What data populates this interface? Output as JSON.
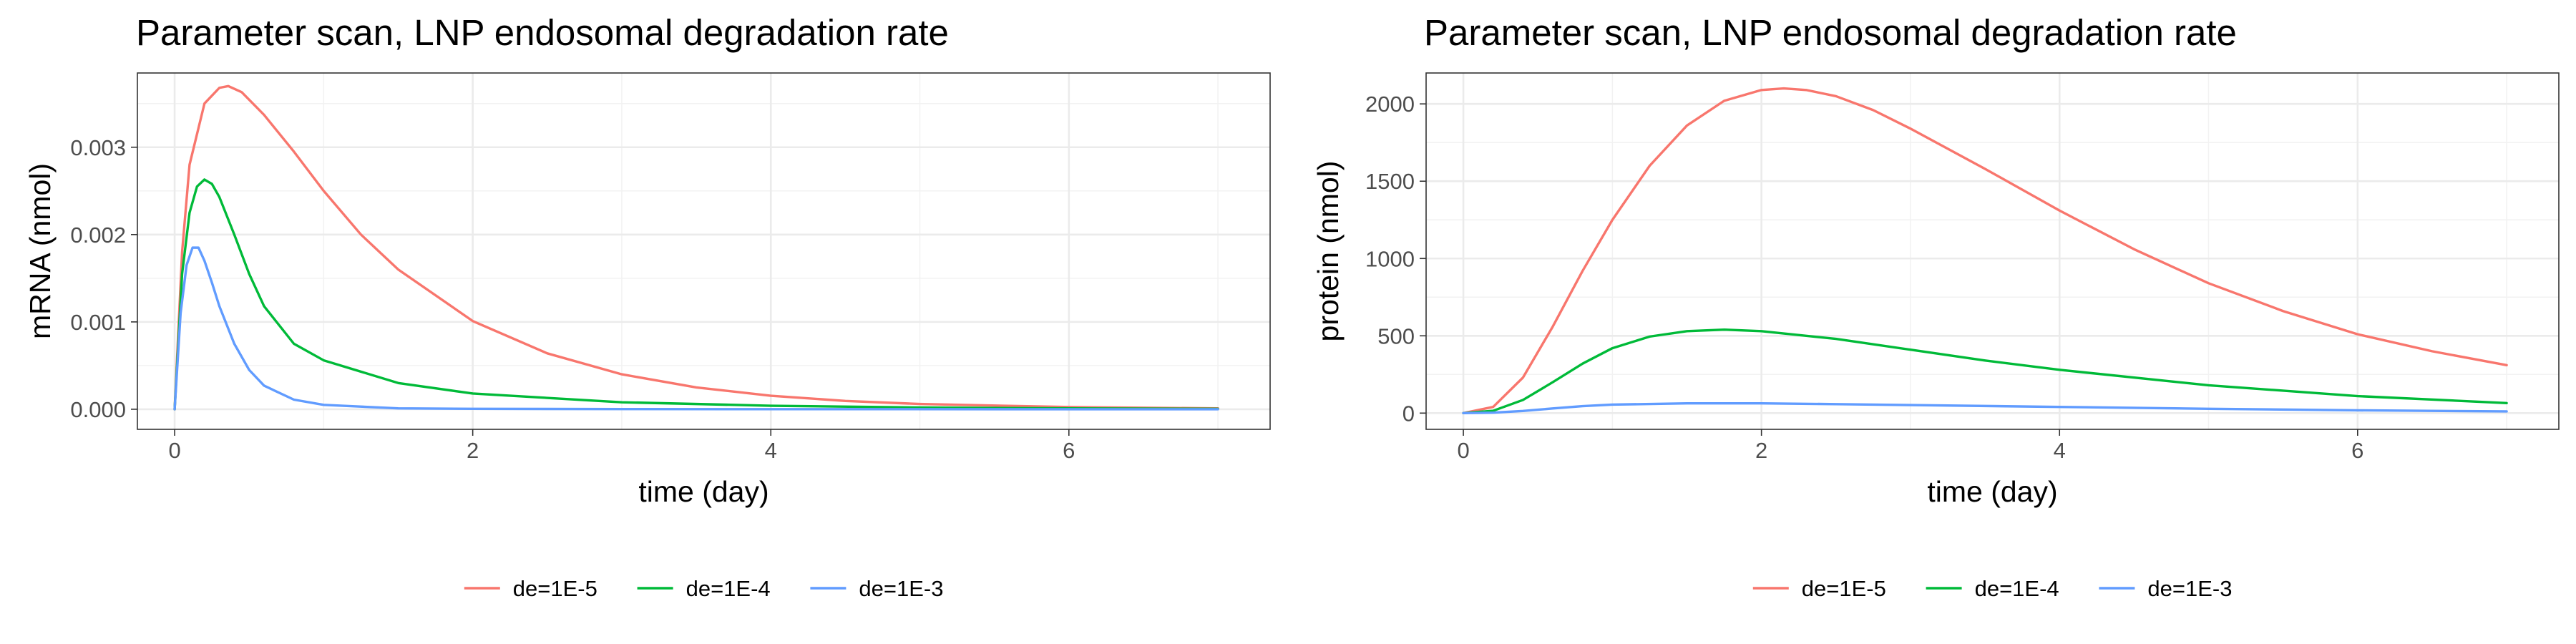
{
  "chart_data": [
    {
      "type": "line",
      "title": "Parameter scan, LNP endosomal degradation rate",
      "xlabel": "time (day)",
      "ylabel": "mRNA (nmol)",
      "xlim": [
        -0.25,
        7.35
      ],
      "ylim": [
        -0.00023,
        0.00385
      ],
      "x_ticks": [
        0,
        2,
        4,
        6
      ],
      "y_ticks": [
        0.0,
        0.001,
        0.002,
        0.003
      ],
      "y_tick_labels": [
        "0.000",
        "0.001",
        "0.002",
        "0.003"
      ],
      "grid": true,
      "legend_position": "bottom",
      "series": [
        {
          "name": "de=1E-5",
          "color": "#F8766D",
          "x": [
            0,
            0.05,
            0.1,
            0.2,
            0.3,
            0.36,
            0.45,
            0.6,
            0.8,
            1.0,
            1.25,
            1.5,
            2.0,
            2.5,
            3.0,
            3.5,
            4.0,
            4.5,
            5.0,
            6.0,
            7.0
          ],
          "y": [
            0,
            0.0018,
            0.0028,
            0.0035,
            0.00368,
            0.0037,
            0.00363,
            0.00337,
            0.00295,
            0.0025,
            0.002,
            0.0016,
            0.00101,
            0.00064,
            0.0004,
            0.00025,
            0.000155,
            9.5e-05,
            6e-05,
            2.5e-05,
            1e-05
          ]
        },
        {
          "name": "de=1E-4",
          "color": "#00BA38",
          "x": [
            0,
            0.05,
            0.1,
            0.15,
            0.2,
            0.25,
            0.3,
            0.4,
            0.5,
            0.6,
            0.8,
            1.0,
            1.5,
            2.0,
            3.0,
            4.0,
            5.0,
            6.0,
            7.0
          ],
          "y": [
            0,
            0.00155,
            0.00225,
            0.00255,
            0.00263,
            0.00258,
            0.00243,
            0.002,
            0.00155,
            0.00118,
            0.00075,
            0.00056,
            0.0003,
            0.00018,
            8e-05,
            4e-05,
            2e-05,
            1e-05,
            5e-06
          ]
        },
        {
          "name": "de=1E-3",
          "color": "#619CFF",
          "x": [
            0,
            0.04,
            0.08,
            0.12,
            0.16,
            0.2,
            0.25,
            0.3,
            0.4,
            0.5,
            0.6,
            0.8,
            1.0,
            1.5,
            2.0,
            3.0,
            4.0,
            7.0
          ],
          "y": [
            0,
            0.0011,
            0.00165,
            0.00185,
            0.00185,
            0.0017,
            0.00145,
            0.00118,
            0.00075,
            0.00045,
            0.00027,
            0.00011,
            5e-05,
            1e-05,
            5e-06,
            2e-06,
            1e-06,
            0
          ]
        }
      ]
    },
    {
      "type": "line",
      "title": "Parameter scan, LNP endosomal degradation rate",
      "xlabel": "time (day)",
      "ylabel": "protein (nmol)",
      "xlim": [
        -0.25,
        7.35
      ],
      "ylim": [
        -105,
        2200
      ],
      "x_ticks": [
        0,
        2,
        4,
        6
      ],
      "y_ticks": [
        0,
        500,
        1000,
        1500,
        2000
      ],
      "y_tick_labels": [
        "0",
        "500",
        "1000",
        "1500",
        "2000"
      ],
      "grid": true,
      "legend_position": "bottom",
      "series": [
        {
          "name": "de=1E-5",
          "color": "#F8766D",
          "x": [
            0,
            0.2,
            0.4,
            0.6,
            0.8,
            1.0,
            1.25,
            1.5,
            1.75,
            2.0,
            2.15,
            2.3,
            2.5,
            2.75,
            3.0,
            3.5,
            4.0,
            4.5,
            5.0,
            5.5,
            6.0,
            6.5,
            7.0
          ],
          "y": [
            0,
            40,
            230,
            560,
            920,
            1250,
            1600,
            1860,
            2020,
            2090,
            2100,
            2090,
            2050,
            1960,
            1840,
            1580,
            1310,
            1060,
            840,
            660,
            510,
            400,
            310
          ]
        },
        {
          "name": "de=1E-4",
          "color": "#00BA38",
          "x": [
            0,
            0.2,
            0.4,
            0.6,
            0.8,
            1.0,
            1.25,
            1.5,
            1.75,
            2.0,
            2.5,
            3.0,
            3.5,
            4.0,
            5.0,
            6.0,
            7.0
          ],
          "y": [
            0,
            15,
            85,
            200,
            320,
            420,
            495,
            530,
            540,
            530,
            480,
            410,
            340,
            280,
            180,
            110,
            65
          ]
        },
        {
          "name": "de=1E-3",
          "color": "#619CFF",
          "x": [
            0,
            0.2,
            0.4,
            0.6,
            0.8,
            1.0,
            1.5,
            2.0,
            2.5,
            3.0,
            4.0,
            5.0,
            6.0,
            7.0
          ],
          "y": [
            0,
            3,
            14,
            30,
            45,
            55,
            63,
            63,
            58,
            52,
            40,
            28,
            18,
            11
          ]
        }
      ]
    }
  ]
}
